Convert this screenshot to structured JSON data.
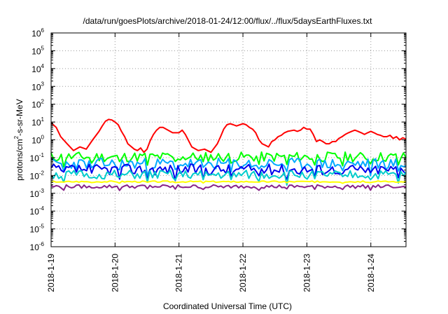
{
  "chart_data": {
    "type": "line",
    "title": "/data/run/goesPlots/archive/2018-01-24/12:00/flux/../flux/5daysEarthFluxes.txt",
    "xlabel": "Coordinated Universal Time (UTC)",
    "ylabel": {
      "prefix": "protons/cm",
      "superscript": "2",
      "suffix": "-s-sr-MeV"
    },
    "y_scale": "log",
    "ylim_exponents": [
      -6,
      6
    ],
    "y_tick_base": "10",
    "y_tick_exponents": [
      "6",
      "5",
      "4",
      "3",
      "2",
      "1",
      "0",
      "-1",
      "-2",
      "-3",
      "-4",
      "-5",
      "-6"
    ],
    "xlim_days": [
      0,
      5.55
    ],
    "x_ticks": [
      {
        "label": "2018-1-19",
        "day": 0
      },
      {
        "label": "2018-1-20",
        "day": 1
      },
      {
        "label": "2018-1-21",
        "day": 2
      },
      {
        "label": "2018-1-22",
        "day": 3
      },
      {
        "label": "2018-1-23",
        "day": 4
      },
      {
        "label": "2018-1-24",
        "day": 5
      }
    ],
    "grid": true,
    "series": [
      {
        "color": "#ff0000",
        "x": [
          0,
          0.08,
          0.15,
          0.25,
          0.35,
          0.45,
          0.55,
          0.65,
          0.75,
          0.8,
          0.85,
          0.9,
          0.95,
          1.0,
          1.05,
          1.1,
          1.15,
          1.2,
          1.3,
          1.35,
          1.4,
          1.45,
          1.5,
          1.55,
          1.6,
          1.65,
          1.7,
          1.75,
          1.8,
          1.9,
          2.0,
          2.05,
          2.1,
          2.15,
          2.2,
          2.3,
          2.4,
          2.5,
          2.6,
          2.65,
          2.7,
          2.75,
          2.8,
          2.85,
          2.9,
          3.0,
          3.05,
          3.1,
          3.15,
          3.2,
          3.25,
          3.3,
          3.35,
          3.4,
          3.45,
          3.5,
          3.55,
          3.6,
          3.65,
          3.7,
          3.8,
          3.85,
          3.9,
          3.95,
          4.0,
          4.05,
          4.1,
          4.15,
          4.2,
          4.25,
          4.3,
          4.35,
          4.4,
          4.45,
          4.5,
          4.55,
          4.6,
          4.65,
          4.7,
          4.75,
          4.8,
          4.85,
          4.9,
          4.95,
          5.0,
          5.05,
          5.1,
          5.15,
          5.2,
          5.25,
          5.3,
          5.35,
          5.4,
          5.45,
          5.5,
          5.55
        ],
        "y": [
          9,
          5,
          1.5,
          0.6,
          0.25,
          0.4,
          0.3,
          1.0,
          3,
          6,
          11,
          14,
          13,
          10,
          7,
          3,
          1.5,
          0.6,
          0.3,
          0.25,
          0.35,
          0.2,
          0.3,
          0.9,
          2.0,
          3.5,
          5,
          5,
          4,
          2.5,
          2.5,
          3.5,
          2.0,
          0.9,
          0.4,
          0.25,
          0.3,
          0.2,
          0.6,
          1.5,
          4,
          7,
          8,
          7,
          6,
          8,
          7,
          5,
          4,
          2.5,
          1.0,
          0.6,
          0.5,
          0.4,
          0.8,
          1.0,
          1.5,
          1.8,
          2.5,
          3,
          3.5,
          3,
          3.5,
          5,
          4,
          4,
          2,
          0.8,
          1.0,
          0.8,
          0.6,
          0.6,
          0.8,
          0.8,
          1.2,
          1.5,
          2,
          2.5,
          3,
          3.5,
          3,
          2.5,
          2,
          2.5,
          3,
          2.5,
          2,
          1.8,
          1.5,
          1.5,
          1.8,
          1.2,
          1.5,
          1.0,
          1.3,
          1.1
        ]
      },
      {
        "color": "#00ff00",
        "base": 0.11,
        "amp": 0.28,
        "seed": 11
      },
      {
        "color": "#00aaff",
        "base": 0.045,
        "amp": 0.32,
        "seed": 23
      },
      {
        "color": "#0000ee",
        "base": 0.022,
        "amp": 0.3,
        "seed": 37
      },
      {
        "color": "#00cccc",
        "base": 0.011,
        "amp": 0.25,
        "seed": 51
      },
      {
        "color": "#ffff00",
        "base": 0.0045,
        "amp": 0.04,
        "seed": 67
      },
      {
        "color": "#882288",
        "base": 0.0024,
        "amp": 0.1,
        "seed": 79
      }
    ]
  }
}
